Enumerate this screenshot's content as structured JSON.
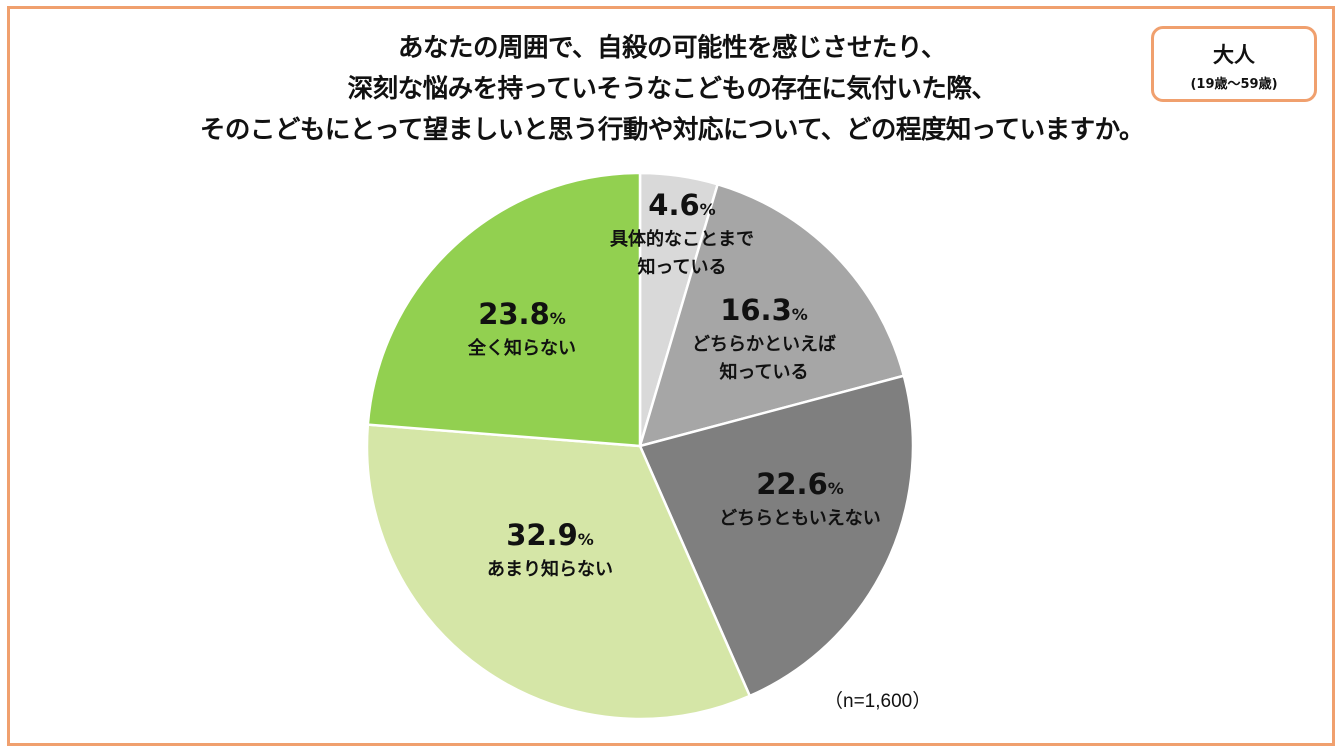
{
  "title_lines": [
    "あなたの周囲で、自殺の可能性を感じさせたり、",
    "深刻な悩みを持っていそうなこどもの存在に気付いた際、",
    "そのこどもにとって望ましいと思う行動や対応について、どの程度知っていますか。"
  ],
  "badge": {
    "main": "大人",
    "sub": "(19歳～59歳)"
  },
  "sample_note": "（n=1,600）",
  "chart_data": {
    "type": "pie",
    "start": "12 o'clock",
    "direction": "clockwise",
    "unit": "%",
    "slices": [
      {
        "label_lines": [
          "具体的なことまで",
          "知っている"
        ],
        "value": 4.6,
        "value_text": "4.6",
        "color": "#d9d9d9"
      },
      {
        "label_lines": [
          "どちらかといえば",
          "知っている"
        ],
        "value": 16.3,
        "value_text": "16.3",
        "color": "#a6a6a6"
      },
      {
        "label_lines": [
          "どちらともいえない"
        ],
        "value": 22.6,
        "value_text": "22.6",
        "color": "#7f7f7f"
      },
      {
        "label_lines": [
          "あまり知らない"
        ],
        "value": 32.9,
        "value_text": "32.9",
        "color": "#d5e6a7"
      },
      {
        "label_lines": [
          "全く知らない"
        ],
        "value": 23.8,
        "value_text": "23.8",
        "color": "#92d050"
      }
    ]
  },
  "colors": {
    "border": "#f0a06e"
  }
}
